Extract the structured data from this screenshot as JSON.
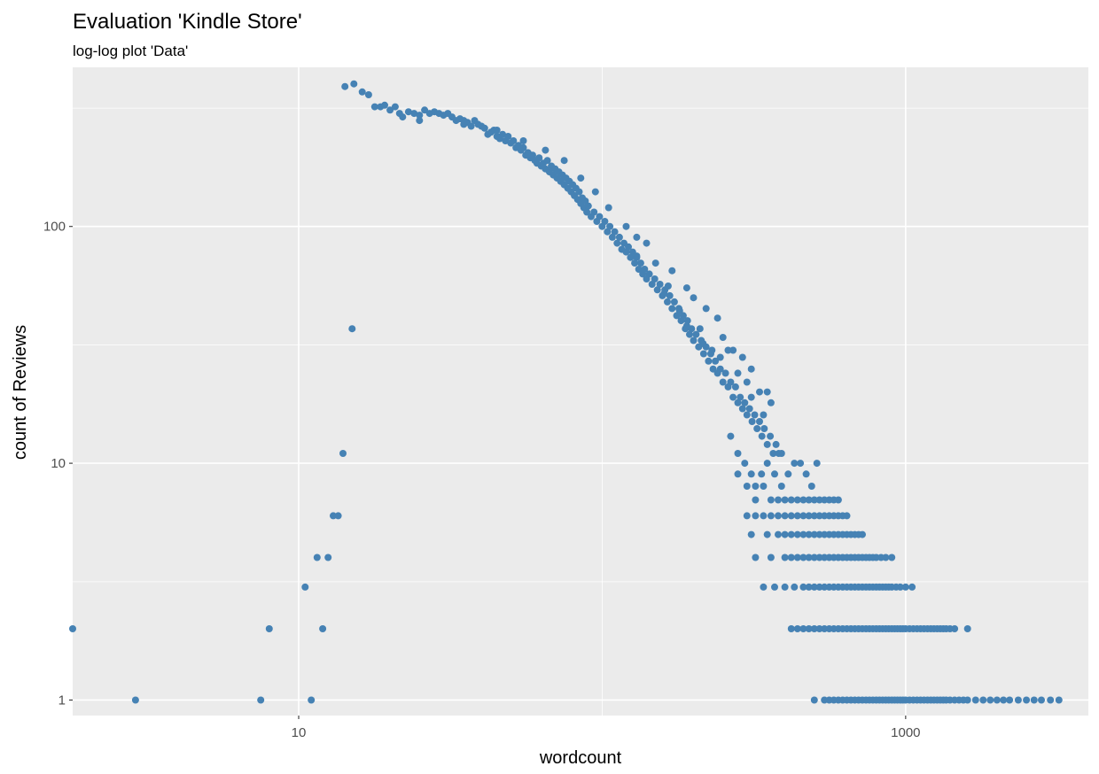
{
  "chart_data": {
    "type": "scatter",
    "title": "Evaluation 'Kindle Store'",
    "subtitle": "log-log plot 'Data'",
    "xlabel": "wordcount",
    "ylabel": "count of Reviews",
    "x_scale": "log10",
    "y_scale": "log10",
    "xlim": [
      1.8,
      4000
    ],
    "ylim": [
      0.86,
      470
    ],
    "x_ticks": [
      {
        "value": 10,
        "label": "10"
      },
      {
        "value": 1000,
        "label": "1000"
      }
    ],
    "y_ticks": [
      {
        "value": 1,
        "label": "1"
      },
      {
        "value": 10,
        "label": "10"
      },
      {
        "value": 100,
        "label": "100"
      }
    ],
    "x_minor_ticks": [
      1,
      100,
      10000
    ],
    "y_minor_ticks": [
      3.16,
      31.6,
      316
    ],
    "grid": true,
    "legend": "none",
    "point_color": "#4682B4",
    "panel_color": "#EBEBEB",
    "points": [
      [
        1.8,
        2
      ],
      [
        2.9,
        1
      ],
      [
        7.5,
        1
      ],
      [
        8,
        2
      ],
      [
        10.5,
        3
      ],
      [
        11,
        1
      ],
      [
        11.5,
        4
      ],
      [
        12,
        2
      ],
      [
        12.5,
        4
      ],
      [
        13,
        6
      ],
      [
        13.5,
        6
      ],
      [
        14,
        11
      ],
      [
        15,
        37
      ],
      [
        14.2,
        390
      ],
      [
        15.2,
        400
      ],
      [
        16.2,
        370
      ],
      [
        17,
        360
      ],
      [
        17.8,
        320
      ],
      [
        18.6,
        320
      ],
      [
        19.2,
        325
      ],
      [
        20,
        310
      ],
      [
        20.8,
        320
      ],
      [
        21.5,
        300
      ],
      [
        22,
        290
      ],
      [
        23,
        305
      ],
      [
        24,
        300
      ],
      [
        25,
        295
      ],
      [
        26,
        310
      ],
      [
        27,
        300
      ],
      [
        28,
        305
      ],
      [
        29,
        300
      ],
      [
        30,
        295
      ],
      [
        31,
        300
      ],
      [
        32,
        290
      ],
      [
        33,
        280
      ],
      [
        34,
        285
      ],
      [
        35,
        270
      ],
      [
        36,
        275
      ],
      [
        37,
        265
      ],
      [
        38,
        280
      ],
      [
        39,
        270
      ],
      [
        40,
        265
      ],
      [
        41,
        260
      ],
      [
        42,
        245
      ],
      [
        43,
        250
      ],
      [
        44,
        255
      ],
      [
        45,
        240
      ],
      [
        46,
        235
      ],
      [
        47,
        245
      ],
      [
        48,
        230
      ],
      [
        49,
        240
      ],
      [
        50,
        225
      ],
      [
        51,
        230
      ],
      [
        52,
        215
      ],
      [
        53,
        220
      ],
      [
        54,
        210
      ],
      [
        55,
        215
      ],
      [
        56,
        200
      ],
      [
        57,
        205
      ],
      [
        58,
        195
      ],
      [
        59,
        200
      ],
      [
        60,
        190
      ],
      [
        61,
        185
      ],
      [
        62,
        195
      ],
      [
        63,
        180
      ],
      [
        64,
        185
      ],
      [
        65,
        175
      ],
      [
        66,
        190
      ],
      [
        67,
        170
      ],
      [
        68,
        180
      ],
      [
        69,
        165
      ],
      [
        70,
        175
      ],
      [
        71,
        160
      ],
      [
        72,
        170
      ],
      [
        73,
        155
      ],
      [
        74,
        165
      ],
      [
        75,
        150
      ],
      [
        76,
        160
      ],
      [
        77,
        145
      ],
      [
        78,
        155
      ],
      [
        79,
        140
      ],
      [
        80,
        150
      ],
      [
        81,
        135
      ],
      [
        82,
        145
      ],
      [
        83,
        130
      ],
      [
        84,
        140
      ],
      [
        85,
        125
      ],
      [
        86,
        132
      ],
      [
        87,
        120
      ],
      [
        88,
        128
      ],
      [
        89,
        115
      ],
      [
        90,
        122
      ],
      [
        92,
        110
      ],
      [
        94,
        115
      ],
      [
        96,
        105
      ],
      [
        98,
        110
      ],
      [
        100,
        100
      ],
      [
        102,
        105
      ],
      [
        104,
        95
      ],
      [
        106,
        100
      ],
      [
        108,
        90
      ],
      [
        110,
        95
      ],
      [
        112,
        85
      ],
      [
        114,
        90
      ],
      [
        116,
        80
      ],
      [
        118,
        85
      ],
      [
        120,
        78
      ],
      [
        122,
        82
      ],
      [
        124,
        74
      ],
      [
        126,
        78
      ],
      [
        128,
        70
      ],
      [
        130,
        74
      ],
      [
        132,
        66
      ],
      [
        134,
        70
      ],
      [
        136,
        63
      ],
      [
        138,
        66
      ],
      [
        140,
        60
      ],
      [
        143,
        63
      ],
      [
        146,
        57
      ],
      [
        149,
        60
      ],
      [
        152,
        54
      ],
      [
        155,
        57
      ],
      [
        158,
        51
      ],
      [
        161,
        54
      ],
      [
        164,
        48
      ],
      [
        167,
        51
      ],
      [
        170,
        45
      ],
      [
        173,
        48
      ],
      [
        176,
        42
      ],
      [
        179,
        45
      ],
      [
        182,
        40
      ],
      [
        185,
        42
      ],
      [
        188,
        37
      ],
      [
        191,
        40
      ],
      [
        194,
        35
      ],
      [
        197,
        37
      ],
      [
        200,
        33
      ],
      [
        204,
        35
      ],
      [
        208,
        31
      ],
      [
        212,
        33
      ],
      [
        216,
        29
      ],
      [
        220,
        31
      ],
      [
        224,
        27
      ],
      [
        228,
        29
      ],
      [
        232,
        25
      ],
      [
        236,
        27
      ],
      [
        240,
        24
      ],
      [
        245,
        25
      ],
      [
        250,
        22
      ],
      [
        255,
        24
      ],
      [
        260,
        21
      ],
      [
        265,
        22
      ],
      [
        270,
        19
      ],
      [
        275,
        21
      ],
      [
        280,
        18
      ],
      [
        285,
        19
      ],
      [
        290,
        17
      ],
      [
        295,
        18
      ],
      [
        300,
        16
      ],
      [
        306,
        17
      ],
      [
        312,
        15
      ],
      [
        318,
        16
      ],
      [
        324,
        14
      ],
      [
        330,
        15
      ],
      [
        336,
        13
      ],
      [
        342,
        14
      ],
      [
        350,
        12
      ],
      [
        358,
        13
      ],
      [
        366,
        11
      ],
      [
        374,
        12
      ],
      [
        382,
        11
      ],
      [
        390,
        11
      ],
      [
        180,
        44
      ],
      [
        190,
        55
      ],
      [
        210,
        37
      ],
      [
        230,
        30
      ],
      [
        250,
        34
      ],
      [
        270,
        30
      ],
      [
        165,
        56
      ],
      [
        240,
        41
      ],
      [
        140,
        85
      ],
      [
        150,
        70
      ],
      [
        170,
        65
      ],
      [
        200,
        50
      ],
      [
        220,
        45
      ],
      [
        260,
        30
      ],
      [
        300,
        22
      ],
      [
        330,
        20
      ],
      [
        360,
        18
      ],
      [
        310,
        25
      ],
      [
        290,
        28
      ],
      [
        350,
        20
      ],
      [
        120,
        100
      ],
      [
        130,
        90
      ],
      [
        105,
        120
      ],
      [
        95,
        140
      ],
      [
        85,
        160
      ],
      [
        75,
        190
      ],
      [
        65,
        210
      ],
      [
        55,
        230
      ],
      [
        45,
        255
      ],
      [
        35,
        280
      ],
      [
        25,
        280
      ],
      [
        130,
        75
      ],
      [
        160,
        52
      ],
      [
        190,
        38
      ],
      [
        215,
        32
      ],
      [
        245,
        28
      ],
      [
        280,
        24
      ],
      [
        310,
        19
      ],
      [
        340,
        16
      ],
      [
        265,
        13
      ],
      [
        280,
        11
      ],
      [
        295,
        10
      ],
      [
        310,
        9
      ],
      [
        320,
        8
      ],
      [
        335,
        9
      ],
      [
        350,
        10
      ],
      [
        370,
        9
      ],
      [
        390,
        8
      ],
      [
        410,
        9
      ],
      [
        430,
        10
      ],
      [
        450,
        10
      ],
      [
        470,
        9
      ],
      [
        490,
        8
      ],
      [
        510,
        10
      ],
      [
        280,
        9
      ],
      [
        300,
        8
      ],
      [
        320,
        7
      ],
      [
        340,
        8
      ],
      [
        360,
        7
      ],
      [
        380,
        7
      ],
      [
        400,
        7
      ],
      [
        420,
        7
      ],
      [
        440,
        7
      ],
      [
        460,
        7
      ],
      [
        480,
        7
      ],
      [
        500,
        7
      ],
      [
        520,
        7
      ],
      [
        540,
        7
      ],
      [
        560,
        7
      ],
      [
        580,
        7
      ],
      [
        600,
        7
      ],
      [
        300,
        6
      ],
      [
        320,
        6
      ],
      [
        340,
        6
      ],
      [
        360,
        6
      ],
      [
        380,
        6
      ],
      [
        400,
        6
      ],
      [
        420,
        6
      ],
      [
        440,
        6
      ],
      [
        460,
        6
      ],
      [
        480,
        6
      ],
      [
        500,
        6
      ],
      [
        520,
        6
      ],
      [
        540,
        6
      ],
      [
        560,
        6
      ],
      [
        580,
        6
      ],
      [
        600,
        6
      ],
      [
        620,
        6
      ],
      [
        640,
        6
      ],
      [
        310,
        5
      ],
      [
        350,
        5
      ],
      [
        380,
        5
      ],
      [
        400,
        5
      ],
      [
        420,
        5
      ],
      [
        440,
        5
      ],
      [
        460,
        5
      ],
      [
        480,
        5
      ],
      [
        500,
        5
      ],
      [
        520,
        5
      ],
      [
        540,
        5
      ],
      [
        560,
        5
      ],
      [
        580,
        5
      ],
      [
        600,
        5
      ],
      [
        620,
        5
      ],
      [
        640,
        5
      ],
      [
        660,
        5
      ],
      [
        680,
        5
      ],
      [
        700,
        5
      ],
      [
        720,
        5
      ],
      [
        320,
        4
      ],
      [
        360,
        4
      ],
      [
        400,
        4
      ],
      [
        420,
        4
      ],
      [
        440,
        4
      ],
      [
        460,
        4
      ],
      [
        480,
        4
      ],
      [
        500,
        4
      ],
      [
        520,
        4
      ],
      [
        540,
        4
      ],
      [
        560,
        4
      ],
      [
        580,
        4
      ],
      [
        600,
        4
      ],
      [
        620,
        4
      ],
      [
        640,
        4
      ],
      [
        660,
        4
      ],
      [
        680,
        4
      ],
      [
        700,
        4
      ],
      [
        720,
        4
      ],
      [
        740,
        4
      ],
      [
        760,
        4
      ],
      [
        780,
        4
      ],
      [
        800,
        4
      ],
      [
        830,
        4
      ],
      [
        860,
        4
      ],
      [
        900,
        4
      ],
      [
        340,
        3
      ],
      [
        370,
        3
      ],
      [
        400,
        3
      ],
      [
        430,
        3
      ],
      [
        460,
        3
      ],
      [
        480,
        3
      ],
      [
        500,
        3
      ],
      [
        520,
        3
      ],
      [
        540,
        3
      ],
      [
        560,
        3
      ],
      [
        580,
        3
      ],
      [
        600,
        3
      ],
      [
        620,
        3
      ],
      [
        640,
        3
      ],
      [
        660,
        3
      ],
      [
        680,
        3
      ],
      [
        700,
        3
      ],
      [
        720,
        3
      ],
      [
        740,
        3
      ],
      [
        760,
        3
      ],
      [
        780,
        3
      ],
      [
        800,
        3
      ],
      [
        820,
        3
      ],
      [
        840,
        3
      ],
      [
        860,
        3
      ],
      [
        880,
        3
      ],
      [
        900,
        3
      ],
      [
        930,
        3
      ],
      [
        960,
        3
      ],
      [
        1000,
        3
      ],
      [
        1050,
        3
      ],
      [
        420,
        2
      ],
      [
        440,
        2
      ],
      [
        460,
        2
      ],
      [
        480,
        2
      ],
      [
        500,
        2
      ],
      [
        520,
        2
      ],
      [
        540,
        2
      ],
      [
        560,
        2
      ],
      [
        580,
        2
      ],
      [
        600,
        2
      ],
      [
        620,
        2
      ],
      [
        640,
        2
      ],
      [
        660,
        2
      ],
      [
        680,
        2
      ],
      [
        700,
        2
      ],
      [
        720,
        2
      ],
      [
        740,
        2
      ],
      [
        760,
        2
      ],
      [
        780,
        2
      ],
      [
        800,
        2
      ],
      [
        820,
        2
      ],
      [
        840,
        2
      ],
      [
        860,
        2
      ],
      [
        880,
        2
      ],
      [
        900,
        2
      ],
      [
        920,
        2
      ],
      [
        940,
        2
      ],
      [
        960,
        2
      ],
      [
        980,
        2
      ],
      [
        1000,
        2
      ],
      [
        1030,
        2
      ],
      [
        1060,
        2
      ],
      [
        1090,
        2
      ],
      [
        1120,
        2
      ],
      [
        1150,
        2
      ],
      [
        1180,
        2
      ],
      [
        1210,
        2
      ],
      [
        1240,
        2
      ],
      [
        1270,
        2
      ],
      [
        1300,
        2
      ],
      [
        1330,
        2
      ],
      [
        1360,
        2
      ],
      [
        1400,
        2
      ],
      [
        1450,
        2
      ],
      [
        1600,
        2
      ],
      [
        500,
        1
      ],
      [
        540,
        1
      ],
      [
        560,
        1
      ],
      [
        580,
        1
      ],
      [
        600,
        1
      ],
      [
        620,
        1
      ],
      [
        640,
        1
      ],
      [
        660,
        1
      ],
      [
        680,
        1
      ],
      [
        700,
        1
      ],
      [
        720,
        1
      ],
      [
        740,
        1
      ],
      [
        760,
        1
      ],
      [
        780,
        1
      ],
      [
        800,
        1
      ],
      [
        820,
        1
      ],
      [
        840,
        1
      ],
      [
        860,
        1
      ],
      [
        880,
        1
      ],
      [
        900,
        1
      ],
      [
        920,
        1
      ],
      [
        940,
        1
      ],
      [
        960,
        1
      ],
      [
        980,
        1
      ],
      [
        1000,
        1
      ],
      [
        1030,
        1
      ],
      [
        1060,
        1
      ],
      [
        1090,
        1
      ],
      [
        1120,
        1
      ],
      [
        1150,
        1
      ],
      [
        1180,
        1
      ],
      [
        1210,
        1
      ],
      [
        1240,
        1
      ],
      [
        1270,
        1
      ],
      [
        1300,
        1
      ],
      [
        1330,
        1
      ],
      [
        1360,
        1
      ],
      [
        1400,
        1
      ],
      [
        1450,
        1
      ],
      [
        1500,
        1
      ],
      [
        1550,
        1
      ],
      [
        1600,
        1
      ],
      [
        1700,
        1
      ],
      [
        1800,
        1
      ],
      [
        1900,
        1
      ],
      [
        2000,
        1
      ],
      [
        2100,
        1
      ],
      [
        2200,
        1
      ],
      [
        2350,
        1
      ],
      [
        2500,
        1
      ],
      [
        2650,
        1
      ],
      [
        2800,
        1
      ],
      [
        3000,
        1
      ],
      [
        3200,
        1
      ]
    ]
  }
}
